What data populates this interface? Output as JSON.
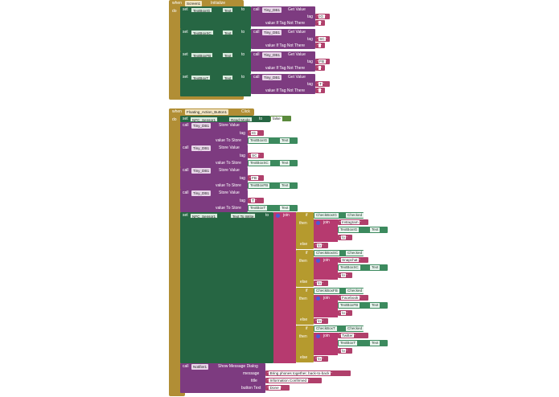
{
  "init_event": {
    "when": "when",
    "component": "Screen1",
    "event": "Initialize",
    "do": "do",
    "rows": [
      {
        "set": "set",
        "target": "TextBoxIG",
        "prop": "Text",
        "to": "to",
        "call": "call",
        "db": "Tiny_DB1",
        "method": "Get Value",
        "tag_label": "tag",
        "tag": "IG",
        "vin_label": "value If Tag Not There",
        "vin": ""
      },
      {
        "set": "set",
        "target": "TextBoxSC",
        "prop": "Text",
        "to": "to",
        "call": "call",
        "db": "Tiny_DB1",
        "method": "Get Value",
        "tag_label": "tag",
        "tag": "SC",
        "vin_label": "value If Tag Not There",
        "vin": ""
      },
      {
        "set": "set",
        "target": "TextBoxFB",
        "prop": "Text",
        "to": "to",
        "call": "call",
        "db": "Tiny_DB1",
        "method": "Get Value",
        "tag_label": "tag",
        "tag": "FB",
        "vin_label": "value If Tag Not There",
        "vin": ""
      },
      {
        "set": "set",
        "target": "TextBoxT",
        "prop": "Text",
        "to": "to",
        "call": "call",
        "db": "Tiny_DB1",
        "method": "Get Value",
        "tag_label": "tag",
        "tag": "T",
        "vin_label": "value If Tag Not There",
        "vin": ""
      }
    ]
  },
  "click_event": {
    "when": "when",
    "component": "Floating_Action_Button1",
    "event": "Click",
    "do": "do",
    "nfc_set": {
      "set": "set",
      "target": "NFC_Sensor1",
      "prop": "Read Mode",
      "to": "to",
      "value": "false"
    },
    "stores": [
      {
        "call": "call",
        "db": "Tiny_DB1",
        "method": "Store Value",
        "tag_label": "tag",
        "tag": "IG",
        "vts_label": "value To Store",
        "src": "TextBoxIG",
        "prop": "Text"
      },
      {
        "call": "call",
        "db": "Tiny_DB1",
        "method": "Store Value",
        "tag_label": "tag",
        "tag": "SC",
        "vts_label": "value To Store",
        "src": "TextBoxSC",
        "prop": "Text"
      },
      {
        "call": "call",
        "db": "Tiny_DB1",
        "method": "Store Value",
        "tag_label": "tag",
        "tag": "FB",
        "vts_label": "value To Store",
        "src": "TextBoxFB",
        "prop": "Text"
      },
      {
        "call": "call",
        "db": "Tiny_DB1",
        "method": "Store Value",
        "tag_label": "tag",
        "tag": "T",
        "vts_label": "value To Store",
        "src": "TextBoxT",
        "prop": "Text"
      }
    ],
    "nfc_write": {
      "set": "set",
      "target": "NFC_Sensor1",
      "prop": "Text To Write",
      "to": "to",
      "join": "join"
    },
    "ifs": [
      {
        "if": "if",
        "then": "then",
        "else": "else",
        "check": "CheckBoxIG",
        "check_prop": "Checked",
        "join": "join",
        "label": "Instagram",
        "box": "TextBoxIG",
        "prop": "Text",
        "sep": "\\n",
        "else_val": "\\n"
      },
      {
        "if": "if",
        "then": "then",
        "else": "else",
        "check": "CheckBoxSC",
        "check_prop": "Checked",
        "join": "join",
        "label": "Snapchat",
        "box": "TextBoxSC",
        "prop": "Text",
        "sep": "\\n",
        "else_val": "\\n"
      },
      {
        "if": "if",
        "then": "then",
        "else": "else",
        "check": "CheckBoxFB",
        "check_prop": "Checked",
        "join": "join",
        "label": "Facebook",
        "box": "TextBoxFB",
        "prop": "Text",
        "sep": "\\n",
        "else_val": "\\n"
      },
      {
        "if": "if",
        "then": "then",
        "else": "else",
        "check": "CheckBoxT",
        "check_prop": "Checked",
        "join": "join",
        "label": "Twitter",
        "box": "TextBoxT",
        "prop": "Text",
        "sep": "\\n",
        "else_val": "\\n"
      }
    ],
    "dialog": {
      "call": "call",
      "component": "Notifier1",
      "method": "Show Message Dialog",
      "message_label": "message",
      "message": "Bring phones together, back-to-back",
      "title_label": "title",
      "title": "Information Confirmed",
      "button_label": "button Text",
      "button": "Done"
    }
  },
  "colors": {
    "event": "#b18e35",
    "set": "#266643",
    "call": "#7d3b80",
    "text": "#a33a6c",
    "logic": "#5a8a3c",
    "control": "#b59a2e"
  }
}
